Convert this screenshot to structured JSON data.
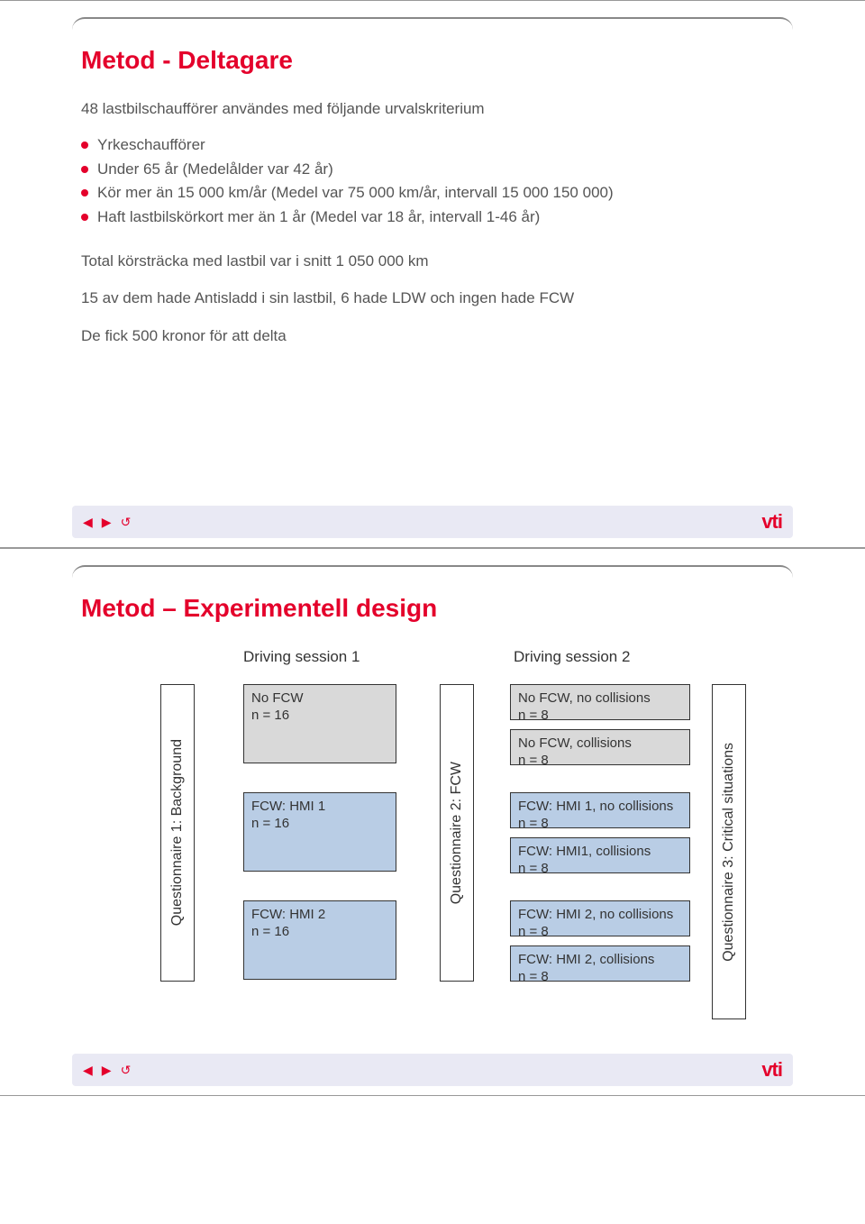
{
  "slide1": {
    "title": "Metod - Deltagare",
    "intro": "48 lastbilschaufförer användes med följande urvalskriterium",
    "bullets": [
      "Yrkeschaufförer",
      "Under 65 år (Medelålder var 42 år)",
      "Kör mer än 15 000 km/år (Medel var 75 000 km/år, intervall 15 000 150 000)",
      "Haft lastbilskörkort mer än 1 år (Medel var 18 år, intervall 1-46 år)"
    ],
    "para1": "Total körsträcka med lastbil var i snitt 1 050 000 km",
    "para2": "15 av dem hade Antisladd i sin lastbil, 6 hade LDW och ingen hade FCW",
    "para3": "De fick 500 kronor för att delta"
  },
  "slide2": {
    "title": "Metod – Experimentell design",
    "session1_header": "Driving session 1",
    "session2_header": "Driving session 2",
    "q1": "Questionnaire 1: Background",
    "q2": "Questionnaire 2: FCW",
    "q3": "Questionnaire 3: Critical situations",
    "s1": [
      {
        "label": "No FCW\nn = 16",
        "fill": "grey"
      },
      {
        "label": "FCW: HMI 1\nn = 16",
        "fill": "blue"
      },
      {
        "label": "FCW: HMI 2\nn = 16",
        "fill": "blue"
      }
    ],
    "s2": [
      {
        "label": "No FCW, no collisions\nn = 8",
        "fill": "grey"
      },
      {
        "label": "No FCW, collisions\nn = 8",
        "fill": "grey"
      },
      {
        "label": "FCW: HMI 1, no collisions\nn = 8",
        "fill": "blue"
      },
      {
        "label": "FCW: HMI1, collisions\nn = 8",
        "fill": "blue"
      },
      {
        "label": "FCW: HMI 2, no collisions\nn = 8",
        "fill": "blue"
      },
      {
        "label": "FCW: HMI 2, collisions\nn = 8",
        "fill": "blue"
      }
    ]
  },
  "logo_text": "vti",
  "colors": {
    "accent": "#e4002b",
    "grey_fill": "#d9d9d9",
    "blue_fill": "#b9cde5",
    "footer_bg": "#e9e9f4",
    "text": "#555555"
  }
}
